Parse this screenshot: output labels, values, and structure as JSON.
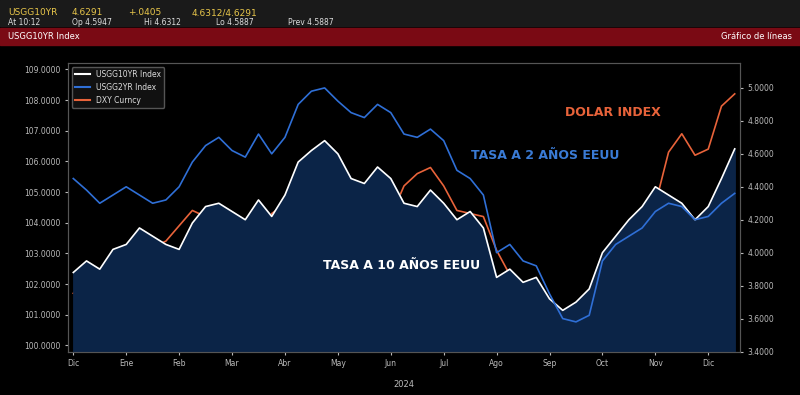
{
  "chart_data": {
    "type": "line",
    "header": [
      "USGG10YR",
      "4.6291",
      "+.0405",
      "4.6312/4.6291",
      "At 10:12",
      "Op 4.5947",
      "Hi 4.6312",
      "Lo 4.5887",
      "Prev 4.5887",
      "USGG10YR Index",
      "Gráfico de líneas"
    ],
    "annotations": [
      {
        "text": "DOLAR INDEX",
        "color": "#e8633a"
      },
      {
        "text": "TASA A 2 AÑOS EEUU",
        "color": "#3a7bd5"
      },
      {
        "text": "TASA A 10 AÑOS EEUU",
        "color": "#ffffff"
      }
    ],
    "year_label": "2024",
    "x": [
      0,
      0.25,
      0.5,
      0.75,
      1,
      1.25,
      1.5,
      1.75,
      2,
      2.25,
      2.5,
      2.75,
      3,
      3.25,
      3.5,
      3.75,
      4,
      4.25,
      4.5,
      4.75,
      5,
      5.25,
      5.5,
      5.75,
      6,
      6.25,
      6.5,
      6.75,
      7,
      7.25,
      7.5,
      7.75,
      8,
      8.25,
      8.5,
      8.75,
      9,
      9.25,
      9.5,
      9.75,
      10,
      10.25,
      10.5,
      10.75,
      11,
      11.25,
      11.5,
      11.75,
      12,
      12.25,
      12.5
    ],
    "xlim": [
      -0.1,
      12.6
    ],
    "xticks": [
      {
        "value": 0,
        "label": "Dic"
      },
      {
        "value": 1,
        "label": "Ene"
      },
      {
        "value": 2,
        "label": "Feb"
      },
      {
        "value": 3,
        "label": "Mar"
      },
      {
        "value": 4,
        "label": "Abr"
      },
      {
        "value": 5,
        "label": "May"
      },
      {
        "value": 6,
        "label": "Jun"
      },
      {
        "value": 7,
        "label": "Jul"
      },
      {
        "value": 8,
        "label": "Ago"
      },
      {
        "value": 9,
        "label": "Sep"
      },
      {
        "value": 10,
        "label": "Oct"
      },
      {
        "value": 11,
        "label": "Nov"
      },
      {
        "value": 12,
        "label": "Dic"
      }
    ],
    "ylim": [
      99.8,
      109.2
    ],
    "yticks": [
      {
        "value": 100,
        "label": "100.0000"
      },
      {
        "value": 101,
        "label": "101.0000"
      },
      {
        "value": 102,
        "label": "102.0000"
      },
      {
        "value": 103,
        "label": "103.0000"
      },
      {
        "value": 104,
        "label": "104.0000"
      },
      {
        "value": 105,
        "label": "105.0000"
      },
      {
        "value": 106,
        "label": "106.0000"
      },
      {
        "value": 107,
        "label": "107.0000"
      },
      {
        "value": 108,
        "label": "108.0000"
      },
      {
        "value": 109,
        "label": "109.0000"
      }
    ],
    "y2lim": [
      3.4,
      5.15
    ],
    "y2ticks": [
      {
        "value": 3.4,
        "label": "3.4000"
      },
      {
        "value": 3.6,
        "label": "3.6000"
      },
      {
        "value": 3.8,
        "label": "3.8000"
      },
      {
        "value": 4.0,
        "label": "4.0000"
      },
      {
        "value": 4.2,
        "label": "4.2000"
      },
      {
        "value": 4.4,
        "label": "4.4000"
      },
      {
        "value": 4.6,
        "label": "4.6000"
      },
      {
        "value": 4.8,
        "label": "4.8000"
      },
      {
        "value": 5.0,
        "label": "5.0000"
      }
    ],
    "grid": false,
    "legend": "upper left",
    "series": [
      {
        "name": "USGG10YR Index",
        "color": "#ffffff",
        "axis": "y2",
        "type": "area",
        "values": [
          3.88,
          3.95,
          3.9,
          4.02,
          4.05,
          4.15,
          4.1,
          4.05,
          4.02,
          4.18,
          4.28,
          4.3,
          4.25,
          4.2,
          4.32,
          4.22,
          4.35,
          4.55,
          4.62,
          4.68,
          4.6,
          4.45,
          4.42,
          4.52,
          4.45,
          4.3,
          4.28,
          4.38,
          4.3,
          4.2,
          4.25,
          4.15,
          3.85,
          3.9,
          3.82,
          3.85,
          3.72,
          3.65,
          3.7,
          3.78,
          4.0,
          4.1,
          4.2,
          4.28,
          4.4,
          4.35,
          4.3,
          4.2,
          4.28,
          4.45,
          4.63
        ]
      },
      {
        "name": "USGG2YR Index",
        "color": "#2f6fd6",
        "axis": "y2",
        "type": "line",
        "values": [
          4.45,
          4.38,
          4.3,
          4.35,
          4.4,
          4.35,
          4.3,
          4.32,
          4.4,
          4.55,
          4.65,
          4.7,
          4.62,
          4.58,
          4.72,
          4.6,
          4.7,
          4.9,
          4.98,
          5.0,
          4.92,
          4.85,
          4.82,
          4.9,
          4.85,
          4.72,
          4.7,
          4.75,
          4.68,
          4.5,
          4.45,
          4.35,
          4.0,
          4.05,
          3.95,
          3.92,
          3.75,
          3.6,
          3.58,
          3.62,
          3.95,
          4.05,
          4.1,
          4.15,
          4.25,
          4.3,
          4.28,
          4.2,
          4.22,
          4.3,
          4.36
        ]
      },
      {
        "name": "DXY Curncy",
        "color": "#e8633a",
        "axis": "y",
        "type": "line",
        "values": [
          101.7,
          102.2,
          101.5,
          101.3,
          102.3,
          102.8,
          103.2,
          103.4,
          103.9,
          104.4,
          104.2,
          104.0,
          103.9,
          103.3,
          103.5,
          104.3,
          104.6,
          105.8,
          106.2,
          105.8,
          105.3,
          104.8,
          104.6,
          104.9,
          104.2,
          105.2,
          105.6,
          105.8,
          105.2,
          104.4,
          104.3,
          104.2,
          103.1,
          102.3,
          101.6,
          101.4,
          101.0,
          100.8,
          100.9,
          101.2,
          102.5,
          103.2,
          103.9,
          104.2,
          104.6,
          106.3,
          106.9,
          106.2,
          106.4,
          107.8,
          108.2
        ]
      }
    ]
  }
}
